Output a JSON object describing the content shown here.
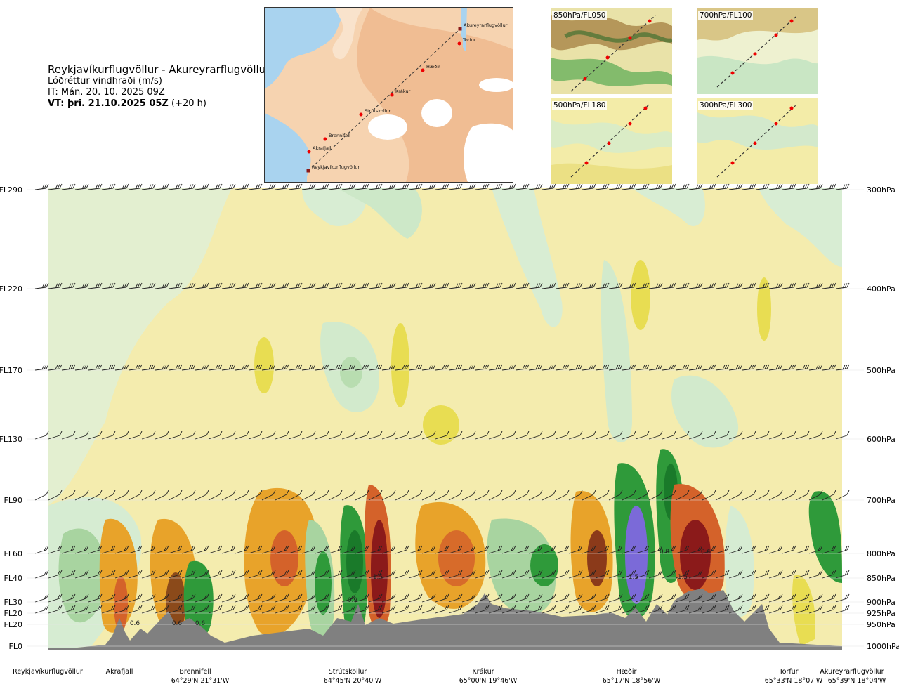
{
  "header": {
    "route": "Reykjavíkurflugvöllur - Akureyrarflugvöllur",
    "product": "Lóðréttur vindhraði (m/s)",
    "issue_time": "IT: Mán. 20. 10. 2025 09Z",
    "valid_time_bold": "VT: þri. 21.10.2025 05Z",
    "valid_offset": "(+20 h)"
  },
  "map": {
    "waypoints": [
      "Reykjavíkurflugvöllur",
      "Akrafjall",
      "Brennifell",
      "Strútskollur",
      "Krákur",
      "Hæðir",
      "Torfur",
      "Akureyrarflugvöllur"
    ]
  },
  "thumbnails": [
    {
      "label": "850hPa/FL050"
    },
    {
      "label": "700hPa/FL100"
    },
    {
      "label": "500hPa/FL180"
    },
    {
      "label": "300hPa/FL300"
    }
  ],
  "colors": {
    "up_strong": "#8b1a1a",
    "up_mid": "#d4622a",
    "up_light": "#e8a32a",
    "up_faint": "#f2e9a0",
    "down_faint": "#d6ecd2",
    "down_light": "#a8d4a0",
    "down_mid": "#2f9a3a",
    "down_strong": "#7b6ad8",
    "terrain": "#808080"
  },
  "chart_data": {
    "type": "heatmap",
    "title": "Lóðréttur vindhraði (m/s)",
    "y_levels": [
      {
        "fl": "FL290",
        "hpa": "300hPa"
      },
      {
        "fl": "FL220",
        "hpa": "400hPa"
      },
      {
        "fl": "FL170",
        "hpa": "500hPa"
      },
      {
        "fl": "FL130",
        "hpa": "600hPa"
      },
      {
        "fl": "FL90",
        "hpa": "700hPa"
      },
      {
        "fl": "FL60",
        "hpa": "800hPa"
      },
      {
        "fl": "FL40",
        "hpa": "850hPa"
      },
      {
        "fl": "FL30",
        "hpa": "900hPa"
      },
      {
        "fl": "FL20",
        "hpa": "925hPa"
      },
      {
        "fl": "FL20",
        "hpa": "950hPa"
      },
      {
        "fl": "FL0",
        "hpa": "1000hPa"
      }
    ],
    "x_locations": [
      {
        "name": "Reykjavíkurflugvöllur",
        "coord": ""
      },
      {
        "name": "Akrafjall",
        "coord": ""
      },
      {
        "name": "Brennifell",
        "coord": "64°29'N 21°31'W"
      },
      {
        "name": "Strútskollur",
        "coord": "64°45'N 20°40'W"
      },
      {
        "name": "Krákur",
        "coord": "65°00'N 19°46'W"
      },
      {
        "name": "Hæðir",
        "coord": "65°17'N 18°56'W"
      },
      {
        "name": "Torfur",
        "coord": "65°33'N 18°07'W"
      },
      {
        "name": "Akureyrarflugvöllur",
        "coord": "65°39'N 18°04'W"
      }
    ],
    "value_labels": [
      "0.6",
      "0.6",
      "0.6",
      "0.9",
      "1.5",
      "1.5",
      "0.8",
      "0.6",
      "1.5"
    ],
    "legend": "none"
  }
}
